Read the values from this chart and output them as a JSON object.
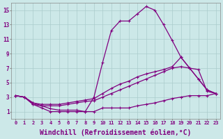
{
  "background_color": "#cce8e8",
  "line_color": "#800080",
  "grid_color": "#aacccc",
  "xlabel": "Windchill (Refroidissement éolien,°C)",
  "xlabel_fontsize": 7.0,
  "xtick_labels": [
    "0",
    "1",
    "2",
    "3",
    "4",
    "5",
    "6",
    "7",
    "8",
    "9",
    "10",
    "11",
    "12",
    "13",
    "14",
    "15",
    "16",
    "17",
    "18",
    "19",
    "20",
    "21",
    "22",
    "23"
  ],
  "ytick_labels": [
    "1",
    "3",
    "5",
    "7",
    "9",
    "11",
    "13",
    "15"
  ],
  "xlim": [
    -0.5,
    23.5
  ],
  "ylim": [
    0,
    16
  ],
  "series1_x": [
    0,
    1,
    2,
    3,
    4,
    5,
    6,
    7,
    8,
    9,
    10,
    11,
    12,
    13,
    14,
    15,
    16,
    17,
    18,
    19,
    20,
    21,
    22,
    23
  ],
  "series1_y": [
    3.2,
    3.0,
    2.2,
    1.8,
    1.4,
    1.2,
    1.2,
    1.2,
    1.0,
    3.0,
    7.8,
    12.2,
    13.5,
    13.5,
    14.5,
    15.5,
    15.0,
    13.0,
    10.8,
    8.5,
    7.0,
    6.8,
    3.8,
    3.5
  ],
  "series2_x": [
    0,
    1,
    2,
    3,
    4,
    5,
    6,
    7,
    8,
    9,
    10,
    11,
    12,
    13,
    14,
    15,
    16,
    17,
    18,
    19,
    20,
    21,
    22,
    23
  ],
  "series2_y": [
    3.2,
    3.0,
    2.2,
    2.0,
    2.0,
    2.0,
    2.2,
    2.4,
    2.6,
    2.8,
    3.5,
    4.2,
    4.8,
    5.2,
    5.8,
    6.2,
    6.5,
    6.8,
    7.2,
    8.5,
    7.0,
    5.5,
    4.0,
    3.5
  ],
  "series3_x": [
    0,
    1,
    2,
    3,
    4,
    5,
    6,
    7,
    8,
    9,
    10,
    11,
    12,
    13,
    14,
    15,
    16,
    17,
    18,
    19,
    20,
    21,
    22,
    23
  ],
  "series3_y": [
    3.2,
    3.0,
    2.0,
    1.8,
    1.8,
    1.8,
    2.0,
    2.2,
    2.4,
    2.5,
    3.0,
    3.5,
    4.0,
    4.5,
    5.0,
    5.5,
    6.0,
    6.5,
    7.0,
    7.2,
    7.0,
    5.5,
    4.0,
    3.5
  ],
  "series4_x": [
    0,
    1,
    2,
    3,
    4,
    5,
    6,
    7,
    8,
    9,
    10,
    11,
    12,
    13,
    14,
    15,
    16,
    17,
    18,
    19,
    20,
    21,
    22,
    23
  ],
  "series4_y": [
    3.2,
    3.0,
    2.0,
    1.5,
    1.0,
    1.0,
    1.0,
    1.0,
    1.0,
    1.0,
    1.5,
    1.5,
    1.5,
    1.5,
    1.8,
    2.0,
    2.2,
    2.5,
    2.8,
    3.0,
    3.2,
    3.2,
    3.2,
    3.5
  ],
  "marker": "+",
  "markersize": 3.5,
  "linewidth": 0.9
}
